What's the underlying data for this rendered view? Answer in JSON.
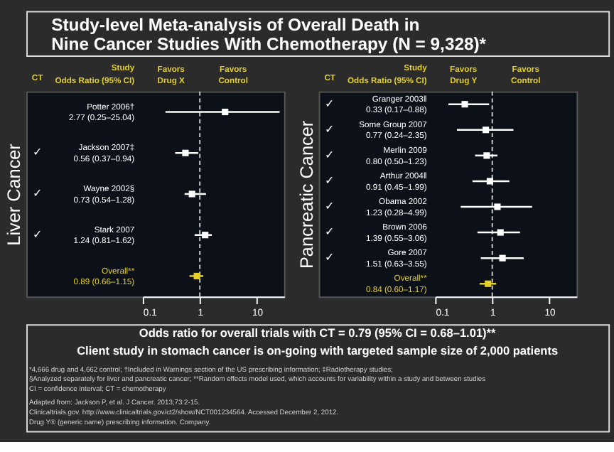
{
  "chart_data": [
    {
      "type": "other",
      "title": "Study-level Meta-analysis of Overall Death in Nine Cancer Studies With Chemotherapy (N = 9,328)*"
    },
    {
      "type": "scatter",
      "orientation": "horizontal",
      "ylabel": "Liver Cancer",
      "log": "x",
      "marker": "square",
      "categories": [
        "Potter 2006†",
        "Jackson 2007‡",
        "Wayne 2002§",
        "Stark 2007",
        "Overall**"
      ],
      "values": [
        2.77,
        0.56,
        0.73,
        1.24,
        0.89
      ],
      "errors": [
        [
          0.25,
          25.04
        ],
        [
          0.37,
          0.94
        ],
        [
          0.54,
          1.28
        ],
        [
          0.81,
          1.62
        ],
        [
          0.66,
          1.15
        ]
      ],
      "value_labels": [
        "2.77 (0.25–25.04)",
        "0.56 (0.37–0.94)",
        "0.73 (0.54–1.28)",
        "1.24 (0.81–1.62)",
        "0.89 (0.66–1.15)"
      ],
      "colors": [
        "#ffffff",
        "#ffffff",
        "#ffffff",
        "#ffffff",
        "#e3cf2a"
      ],
      "xlim": [
        0.1,
        30
      ],
      "xticks": [
        0.1,
        1,
        10
      ],
      "ref_lines": [
        {
          "axis": "x",
          "value": 1,
          "line_style": "dashed",
          "color": "#cccccc"
        }
      ],
      "annotations": [
        "CT",
        "Study",
        "Odds Ratio (95% CI)",
        "Favors Drug X",
        "Favors Control",
        "✓",
        "✓",
        "✓"
      ]
    },
    {
      "type": "scatter",
      "orientation": "horizontal",
      "ylabel": "Pancreatic Cancer",
      "log": "x",
      "marker": "square",
      "categories": [
        "Granger 2003‖",
        "Some Group 2007",
        "Merlin 2009",
        "Arthur 2004‖",
        "Obama 2002",
        "Brown 2006",
        "Gore 2007",
        "Overall**"
      ],
      "values": [
        0.33,
        0.77,
        0.8,
        0.91,
        1.23,
        1.39,
        1.51,
        0.84
      ],
      "errors": [
        [
          0.17,
          0.88
        ],
        [
          0.24,
          2.35
        ],
        [
          0.5,
          1.23
        ],
        [
          0.45,
          1.99
        ],
        [
          0.28,
          4.99
        ],
        [
          0.55,
          3.06
        ],
        [
          0.63,
          3.55
        ],
        [
          0.6,
          1.17
        ]
      ],
      "value_labels": [
        "0.33 (0.17–0.88)",
        "0.77 (0.24–2.35)",
        "0.80 (0.50–1.23)",
        "0.91 (0.45–1.99)",
        "1.23 (0.28–4.99)",
        "1.39 (0.55–3.06)",
        "1.51 (0.63–3.55)",
        "0.84 (0.60–1.17)"
      ],
      "colors": [
        "#ffffff",
        "#ffffff",
        "#ffffff",
        "#ffffff",
        "#ffffff",
        "#ffffff",
        "#ffffff",
        "#e3cf2a"
      ],
      "xlim": [
        0.1,
        30
      ],
      "xticks": [
        0.1,
        1,
        10
      ],
      "ref_lines": [
        {
          "axis": "x",
          "value": 1,
          "line_style": "dashed",
          "color": "#cccccc"
        }
      ],
      "annotations": [
        "CT",
        "Study",
        "Odds Ratio (95% CI)",
        "Favors Drug Y",
        "Favors Control",
        "✓",
        "✓",
        "✓",
        "✓",
        "✓",
        "✓",
        "✓"
      ]
    },
    {
      "type": "other",
      "annotations": [
        "Odds ratio for overall trials with CT = 0.79 (95% CI = 0.68–1.01)**",
        "Client study in stomach cancer is on-going with targeted sample size of 2,000 patients",
        "*4,666 drug and 4,662 control; †Included in Warnings section of the US prescribing information; ‡Radiotherapy studies;",
        "§Analyzed separately for liver and pancreatic cancer; **Random effects model used, which accounts for variability within a study and between studies",
        "CI = confidence interval; CT = chemotherapy",
        "Adapted from: Jackson P, et al. J Cancer. 2013;73:2-15.",
        "Clinicaltrials.gov. http://www.clinicaltrials.gov/ct2/show/NCT001234564. Accessed December 2, 2012.",
        "Drug Y® (generic name) prescribing information. Company."
      ]
    }
  ]
}
